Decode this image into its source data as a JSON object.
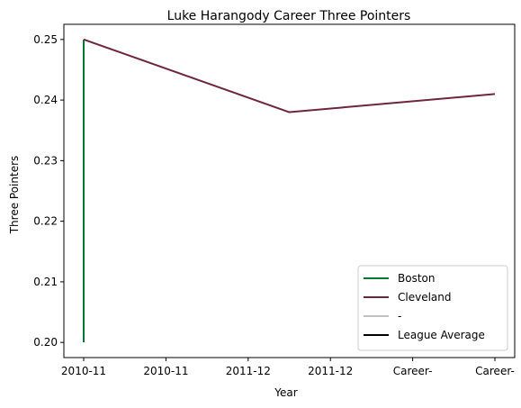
{
  "chart_data": {
    "type": "line",
    "title": "Luke Harangody Career Three Pointers",
    "xlabel": "Year",
    "ylabel": "Three Pointers",
    "categories": [
      "2010-11",
      "2010-11",
      "2011-12",
      "2011-12",
      "Career-",
      "Career-"
    ],
    "ylim": [
      0.1975,
      0.2525
    ],
    "yticks": [
      0.2,
      0.21,
      0.22,
      0.23,
      0.24,
      0.25
    ],
    "ytick_labels": [
      "0.20",
      "0.21",
      "0.22",
      "0.23",
      "0.24",
      "0.25"
    ],
    "series": [
      {
        "name": "Boston",
        "color": "#007a33",
        "x": [
          0,
          0
        ],
        "values": [
          0.2,
          0.25
        ]
      },
      {
        "name": "Cleveland",
        "color": "#6f263d",
        "x": [
          0,
          2.5,
          5
        ],
        "values": [
          0.25,
          0.238,
          0.241
        ]
      },
      {
        "name": "-",
        "color": "#c0c0c0",
        "x": [],
        "values": []
      },
      {
        "name": "League Average",
        "color": "#000000",
        "x": [],
        "values": []
      }
    ],
    "legend_position": "bottom-right",
    "grid": false
  }
}
